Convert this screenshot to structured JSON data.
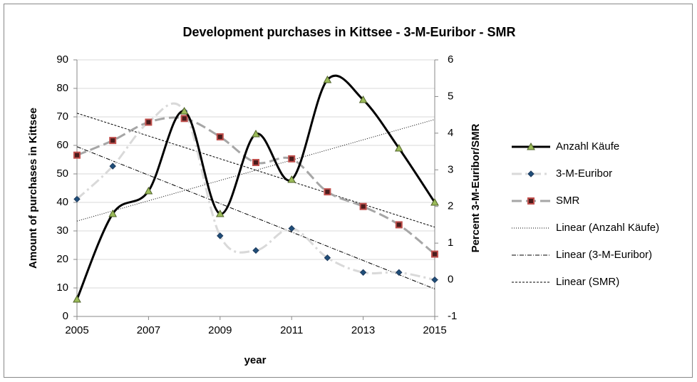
{
  "chart_data": {
    "type": "line",
    "title": "Development purchases in Kittsee - 3-M-Euribor - SMR",
    "x_label": "year",
    "y_label": "Amount of purchases in Kittsee",
    "y2_label": "Percent 3-M-Euribor/SMR",
    "x": [
      2005,
      2006,
      2007,
      2008,
      2009,
      2010,
      2011,
      2012,
      2013,
      2014,
      2015
    ],
    "xlim": [
      2005,
      2015
    ],
    "xticks": [
      2005,
      2007,
      2009,
      2011,
      2013,
      2015
    ],
    "ylim": [
      0,
      90
    ],
    "yticks": [
      0,
      10,
      20,
      30,
      40,
      50,
      60,
      70,
      80,
      90
    ],
    "y2lim": [
      -1,
      6
    ],
    "y2ticks": [
      -1,
      0,
      1,
      2,
      3,
      4,
      5,
      6
    ],
    "grid": true,
    "smooth": true,
    "legend": "right",
    "series": [
      {
        "name": "Anzahl Käufe",
        "color": "#000000",
        "dash": "none",
        "width": 3,
        "marker": "triangle",
        "marker_color": "#9bbb59",
        "values": [
          6,
          36,
          44,
          72,
          36,
          64,
          48,
          83,
          76,
          59,
          40
        ],
        "trendline": {
          "name": "Linear (Anzahl Käufe)",
          "dash": "1,2"
        }
      },
      {
        "name": "3-M-Euribor",
        "color": "#d9d9d9",
        "dash": "14,5,3,5",
        "width": 3,
        "marker": "diamond",
        "marker_color": "#1f4e79",
        "axis": "y2",
        "values": [
          2.2,
          3.1,
          4.3,
          4.6,
          1.2,
          0.8,
          1.4,
          0.6,
          0.2,
          0.2,
          0.0
        ],
        "trendline": {
          "name": "Linear (3-M-Euribor)",
          "dash": "6,2,1,2"
        }
      },
      {
        "name": "SMR",
        "color": "#a6a6a6",
        "dash": "14,6",
        "width": 3,
        "marker": "square",
        "marker_color": "#c0504d",
        "axis": "y2",
        "values": [
          3.4,
          3.8,
          4.3,
          4.4,
          3.9,
          3.2,
          3.3,
          2.4,
          2.0,
          1.5,
          0.7
        ],
        "trendline": {
          "name": "Linear (SMR)",
          "dash": "3,2"
        }
      }
    ]
  }
}
